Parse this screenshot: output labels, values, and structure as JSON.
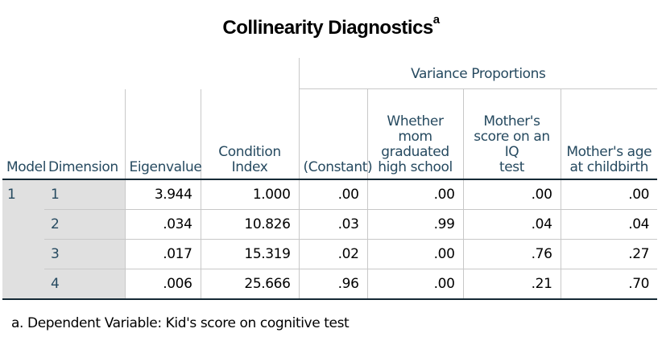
{
  "title": {
    "text": "Collinearity Diagnostics",
    "superscript": "a"
  },
  "table": {
    "group_header": "Variance Proportions",
    "columns": {
      "model": "Model",
      "dimension": "Dimension",
      "eigenvalue": "Eigenvalue",
      "condition_index_line1": "Condition",
      "condition_index_line2": "Index",
      "constant": "(Constant)",
      "hs_line1": "Whether mom",
      "hs_line2": "graduated",
      "hs_line3": "high school",
      "iq_line1": "Mother's",
      "iq_line2": "score on an IQ",
      "iq_line3": "test",
      "age_line1": "Mother's age",
      "age_line2": "at childbirth"
    },
    "model_label": "1",
    "rows": [
      {
        "dimension": "1",
        "eigenvalue": "3.944",
        "condition_index": "1.000",
        "constant": ".00",
        "hs": ".00",
        "iq": ".00",
        "age": ".00"
      },
      {
        "dimension": "2",
        "eigenvalue": ".034",
        "condition_index": "10.826",
        "constant": ".03",
        "hs": ".99",
        "iq": ".04",
        "age": ".04"
      },
      {
        "dimension": "3",
        "eigenvalue": ".017",
        "condition_index": "15.319",
        "constant": ".02",
        "hs": ".00",
        "iq": ".76",
        "age": ".27"
      },
      {
        "dimension": "4",
        "eigenvalue": ".006",
        "condition_index": "25.666",
        "constant": ".96",
        "hs": ".00",
        "iq": ".21",
        "age": ".70"
      }
    ]
  },
  "footnote": "a. Dependent Variable: Kid's score on cognitive test",
  "colors": {
    "header_text": "#264a60",
    "row_label_bg": "#e0e0e0",
    "rule": "#152935",
    "grid": "#c8c8c8"
  }
}
